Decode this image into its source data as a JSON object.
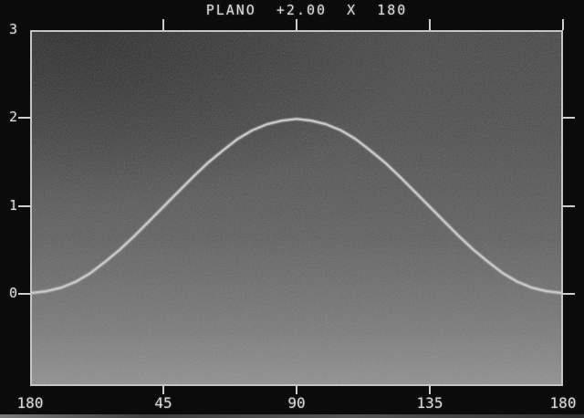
{
  "screen": {
    "title": "PLANO  +2.00  X  180"
  },
  "chart_data": {
    "type": "line",
    "title": "PLANO +2.00 X 180",
    "grid": false,
    "legend": false,
    "x_axis": {
      "range_deg": [
        0,
        180
      ],
      "ticks": [
        {
          "label": "180",
          "deg": 0,
          "tick_top": false,
          "tick_bottom": false
        },
        {
          "label": "45",
          "deg": 45,
          "tick_top": true,
          "tick_bottom": true
        },
        {
          "label": "90",
          "deg": 90,
          "tick_top": true,
          "tick_bottom": true
        },
        {
          "label": "135",
          "deg": 135,
          "tick_top": true,
          "tick_bottom": true
        },
        {
          "label": "180",
          "deg": 180,
          "tick_top": true,
          "tick_bottom": false
        }
      ]
    },
    "y_axis": {
      "range": [
        -1.05,
        3.0
      ],
      "ticks": [
        {
          "label": "3",
          "value": 3,
          "tick": false
        },
        {
          "label": "2",
          "value": 2,
          "tick": true
        },
        {
          "label": "1",
          "value": 1,
          "tick": true
        },
        {
          "label": "0",
          "value": 0,
          "tick": true
        }
      ]
    },
    "series": [
      {
        "name": "cylinder-power-vs-meridian",
        "peak_value": 2.0,
        "peak_deg": 90,
        "x_deg": [
          0,
          5,
          10,
          15,
          20,
          25,
          30,
          35,
          40,
          45,
          50,
          55,
          60,
          65,
          70,
          75,
          80,
          85,
          90,
          95,
          100,
          105,
          110,
          115,
          120,
          125,
          130,
          135,
          140,
          145,
          150,
          155,
          160,
          165,
          170,
          175,
          180
        ],
        "values": [
          0,
          0.02,
          0.06,
          0.13,
          0.23,
          0.36,
          0.5,
          0.66,
          0.83,
          1,
          1.17,
          1.34,
          1.5,
          1.64,
          1.77,
          1.87,
          1.94,
          1.98,
          2,
          1.98,
          1.94,
          1.87,
          1.77,
          1.64,
          1.5,
          1.34,
          1.17,
          1,
          0.83,
          0.66,
          0.5,
          0.36,
          0.23,
          0.13,
          0.06,
          0.02,
          0
        ]
      }
    ]
  },
  "colors": {
    "background": "#060606",
    "frame": "#c6c6c6",
    "curve": "#cccccc",
    "text": "#dcdcdc",
    "tick": "#cfcfcf"
  }
}
